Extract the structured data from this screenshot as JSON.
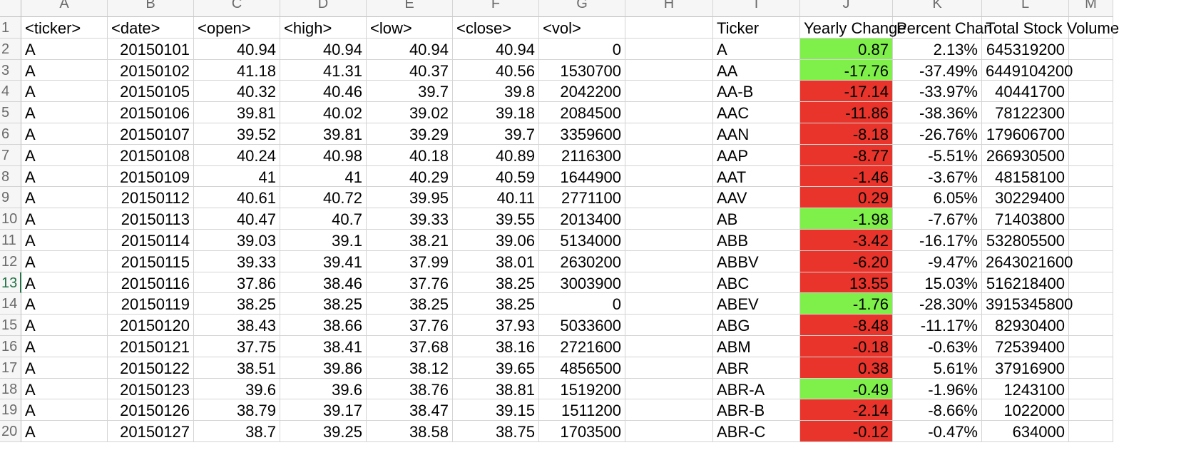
{
  "colors": {
    "positive": "#7ff04a",
    "negative": "#e8342a"
  },
  "column_letters": [
    "A",
    "B",
    "C",
    "D",
    "E",
    "F",
    "G",
    "H",
    "I",
    "J",
    "K",
    "L",
    "M"
  ],
  "row_numbers": [
    "1",
    "2",
    "3",
    "4",
    "5",
    "6",
    "7",
    "8",
    "9",
    "10",
    "11",
    "12",
    "13",
    "14",
    "15",
    "16",
    "17",
    "18",
    "19",
    "20"
  ],
  "selected_row": "13",
  "raw_headers": [
    "<ticker>",
    "<date>",
    "<open>",
    "<high>",
    "<low>",
    "<close>",
    "<vol>"
  ],
  "raw_rows": [
    [
      "A",
      "20150101",
      "40.94",
      "40.94",
      "40.94",
      "40.94",
      "0"
    ],
    [
      "A",
      "20150102",
      "41.18",
      "41.31",
      "40.37",
      "40.56",
      "1530700"
    ],
    [
      "A",
      "20150105",
      "40.32",
      "40.46",
      "39.7",
      "39.8",
      "2042200"
    ],
    [
      "A",
      "20150106",
      "39.81",
      "40.02",
      "39.02",
      "39.18",
      "2084500"
    ],
    [
      "A",
      "20150107",
      "39.52",
      "39.81",
      "39.29",
      "39.7",
      "3359600"
    ],
    [
      "A",
      "20150108",
      "40.24",
      "40.98",
      "40.18",
      "40.89",
      "2116300"
    ],
    [
      "A",
      "20150109",
      "41",
      "41",
      "40.29",
      "40.59",
      "1644900"
    ],
    [
      "A",
      "20150112",
      "40.61",
      "40.72",
      "39.95",
      "40.11",
      "2771100"
    ],
    [
      "A",
      "20150113",
      "40.47",
      "40.7",
      "39.33",
      "39.55",
      "2013400"
    ],
    [
      "A",
      "20150114",
      "39.03",
      "39.1",
      "38.21",
      "39.06",
      "5134000"
    ],
    [
      "A",
      "20150115",
      "39.33",
      "39.41",
      "37.99",
      "38.01",
      "2630200"
    ],
    [
      "A",
      "20150116",
      "37.86",
      "38.46",
      "37.76",
      "38.25",
      "3003900"
    ],
    [
      "A",
      "20150119",
      "38.25",
      "38.25",
      "38.25",
      "38.25",
      "0"
    ],
    [
      "A",
      "20150120",
      "38.43",
      "38.66",
      "37.76",
      "37.93",
      "5033600"
    ],
    [
      "A",
      "20150121",
      "37.75",
      "38.41",
      "37.68",
      "38.16",
      "2721600"
    ],
    [
      "A",
      "20150122",
      "38.51",
      "39.86",
      "38.12",
      "39.65",
      "4856500"
    ],
    [
      "A",
      "20150123",
      "39.6",
      "39.6",
      "38.76",
      "38.81",
      "1519200"
    ],
    [
      "A",
      "20150126",
      "38.79",
      "39.17",
      "38.47",
      "39.15",
      "1511200"
    ],
    [
      "A",
      "20150127",
      "38.7",
      "39.25",
      "38.58",
      "38.75",
      "1703500"
    ]
  ],
  "summary_headers": [
    "Ticker",
    "Yearly Change",
    "Percent Chan",
    "Total Stock Volume"
  ],
  "summary_rows": [
    {
      "ticker": "A",
      "yearly_change": "0.87",
      "percent_change": "2.13%",
      "total_volume": "645319200",
      "fill": "positive"
    },
    {
      "ticker": "AA",
      "yearly_change": "-17.76",
      "percent_change": "-37.49%",
      "total_volume": "6449104200",
      "fill": "positive"
    },
    {
      "ticker": "AA-B",
      "yearly_change": "-17.14",
      "percent_change": "-33.97%",
      "total_volume": "40441700",
      "fill": "negative"
    },
    {
      "ticker": "AAC",
      "yearly_change": "-11.86",
      "percent_change": "-38.36%",
      "total_volume": "78122300",
      "fill": "negative"
    },
    {
      "ticker": "AAN",
      "yearly_change": "-8.18",
      "percent_change": "-26.76%",
      "total_volume": "179606700",
      "fill": "negative"
    },
    {
      "ticker": "AAP",
      "yearly_change": "-8.77",
      "percent_change": "-5.51%",
      "total_volume": "266930500",
      "fill": "negative"
    },
    {
      "ticker": "AAT",
      "yearly_change": "-1.46",
      "percent_change": "-3.67%",
      "total_volume": "48158100",
      "fill": "negative"
    },
    {
      "ticker": "AAV",
      "yearly_change": "0.29",
      "percent_change": "6.05%",
      "total_volume": "30229400",
      "fill": "negative"
    },
    {
      "ticker": "AB",
      "yearly_change": "-1.98",
      "percent_change": "-7.67%",
      "total_volume": "71403800",
      "fill": "positive"
    },
    {
      "ticker": "ABB",
      "yearly_change": "-3.42",
      "percent_change": "-16.17%",
      "total_volume": "532805500",
      "fill": "negative"
    },
    {
      "ticker": "ABBV",
      "yearly_change": "-6.20",
      "percent_change": "-9.47%",
      "total_volume": "2643021600",
      "fill": "negative"
    },
    {
      "ticker": "ABC",
      "yearly_change": "13.55",
      "percent_change": "15.03%",
      "total_volume": "516218400",
      "fill": "negative"
    },
    {
      "ticker": "ABEV",
      "yearly_change": "-1.76",
      "percent_change": "-28.30%",
      "total_volume": "3915345800",
      "fill": "positive"
    },
    {
      "ticker": "ABG",
      "yearly_change": "-8.48",
      "percent_change": "-11.17%",
      "total_volume": "82930400",
      "fill": "negative"
    },
    {
      "ticker": "ABM",
      "yearly_change": "-0.18",
      "percent_change": "-0.63%",
      "total_volume": "72539400",
      "fill": "negative"
    },
    {
      "ticker": "ABR",
      "yearly_change": "0.38",
      "percent_change": "5.61%",
      "total_volume": "37916900",
      "fill": "negative"
    },
    {
      "ticker": "ABR-A",
      "yearly_change": "-0.49",
      "percent_change": "-1.96%",
      "total_volume": "1243100",
      "fill": "positive"
    },
    {
      "ticker": "ABR-B",
      "yearly_change": "-2.14",
      "percent_change": "-8.66%",
      "total_volume": "1022000",
      "fill": "negative"
    },
    {
      "ticker": "ABR-C",
      "yearly_change": "-0.12",
      "percent_change": "-0.47%",
      "total_volume": "634000",
      "fill": "negative"
    }
  ]
}
